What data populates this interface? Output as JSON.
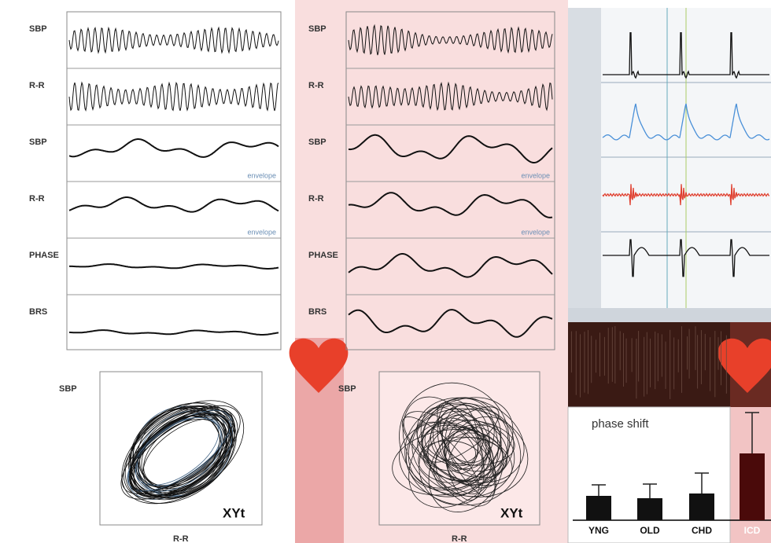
{
  "left_panel": {
    "traces": [
      {
        "label": "SBP"
      },
      {
        "label": "R-R"
      },
      {
        "label": "SBP",
        "note": "envelope"
      },
      {
        "label": "R-R",
        "note": "envelope"
      },
      {
        "label": "PHASE"
      },
      {
        "label": "BRS"
      }
    ],
    "xyt": {
      "y_label": "SBP",
      "x_label": "R-R",
      "tag": "XYt"
    }
  },
  "middle_panel": {
    "traces": [
      {
        "label": "SBP"
      },
      {
        "label": "R-R"
      },
      {
        "label": "SBP",
        "note": "envelope"
      },
      {
        "label": "R-R",
        "note": "envelope"
      },
      {
        "label": "PHASE"
      },
      {
        "label": "BRS"
      }
    ],
    "xyt": {
      "y_label": "SBP",
      "x_label": "R-R",
      "tag": "XYt"
    }
  },
  "chart_data": {
    "type": "bar",
    "title": "phase shift",
    "categories": [
      "YNG",
      "OLD",
      "CHD",
      "ICD"
    ],
    "values": [
      31,
      28,
      34,
      85
    ],
    "errors": [
      14,
      18,
      26,
      52
    ],
    "colors": [
      "#111111",
      "#111111",
      "#111111",
      "#4a0a0a"
    ],
    "ylim": [
      0,
      140
    ]
  }
}
